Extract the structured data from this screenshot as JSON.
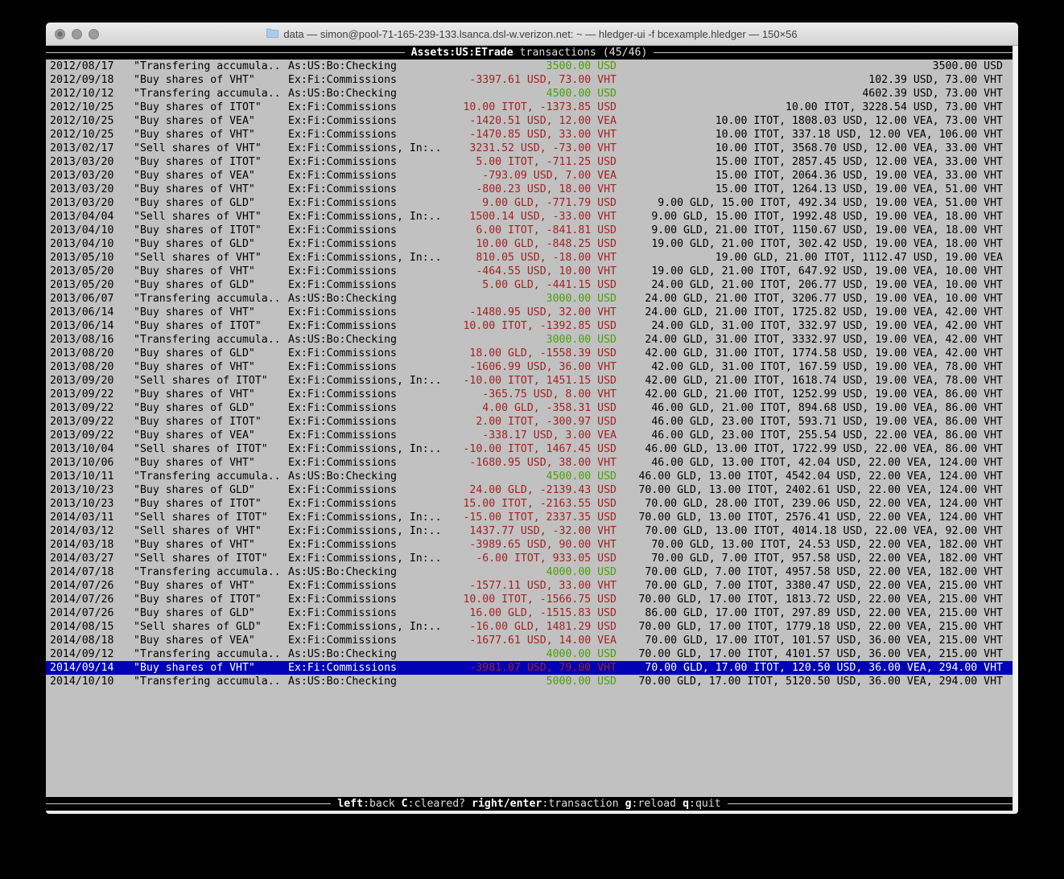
{
  "colors": {
    "terminal_bg": "#c1c1c1",
    "bar_bg": "#000000",
    "selection_bg": "#0000b4",
    "amount_negative": "#a32222",
    "amount_positive": "#4ba006"
  },
  "window": {
    "title": "data — simon@pool-71-165-239-133.lsanca.dsl-w.verizon.net: ~ — hledger-ui -f bcexample.hledger — 150×56"
  },
  "header": {
    "account": "Assets:US:ETrade",
    "rest": " transactions (45/46)"
  },
  "footer": {
    "hints": [
      {
        "key": "left",
        "desc": "back"
      },
      {
        "key": "C",
        "desc": "cleared?"
      },
      {
        "key": "right/enter",
        "desc": "transaction"
      },
      {
        "key": "g",
        "desc": "reload"
      },
      {
        "key": "q",
        "desc": "quit"
      }
    ]
  },
  "register": {
    "selected_index": 44,
    "rows": [
      {
        "date": "2012/08/17",
        "description": "\"Transfering accumula..",
        "account": "As:US:Bo:Checking",
        "amount": "3500.00 USD",
        "amount_sign": "pos",
        "balance": "3500.00 USD"
      },
      {
        "date": "2012/09/18",
        "description": "\"Buy shares of VHT\"",
        "account": "Ex:Fi:Commissions",
        "amount": "-3397.61 USD, 73.00 VHT",
        "amount_sign": "neg",
        "balance": "102.39 USD, 73.00 VHT"
      },
      {
        "date": "2012/10/12",
        "description": "\"Transfering accumula..",
        "account": "As:US:Bo:Checking",
        "amount": "4500.00 USD",
        "amount_sign": "pos",
        "balance": "4602.39 USD, 73.00 VHT"
      },
      {
        "date": "2012/10/25",
        "description": "\"Buy shares of ITOT\"",
        "account": "Ex:Fi:Commissions",
        "amount": "10.00 ITOT, -1373.85 USD",
        "amount_sign": "neg",
        "balance": "10.00 ITOT, 3228.54 USD, 73.00 VHT"
      },
      {
        "date": "2012/10/25",
        "description": "\"Buy shares of VEA\"",
        "account": "Ex:Fi:Commissions",
        "amount": "-1420.51 USD, 12.00 VEA",
        "amount_sign": "neg",
        "balance": "10.00 ITOT, 1808.03 USD, 12.00 VEA, 73.00 VHT"
      },
      {
        "date": "2012/10/25",
        "description": "\"Buy shares of VHT\"",
        "account": "Ex:Fi:Commissions",
        "amount": "-1470.85 USD, 33.00 VHT",
        "amount_sign": "neg",
        "balance": "10.00 ITOT, 337.18 USD, 12.00 VEA, 106.00 VHT"
      },
      {
        "date": "2013/02/17",
        "description": "\"Sell shares of VHT\"",
        "account": "Ex:Fi:Commissions, In:..",
        "amount": "3231.52 USD, -73.00 VHT",
        "amount_sign": "neg",
        "balance": "10.00 ITOT, 3568.70 USD, 12.00 VEA, 33.00 VHT"
      },
      {
        "date": "2013/03/20",
        "description": "\"Buy shares of ITOT\"",
        "account": "Ex:Fi:Commissions",
        "amount": "5.00 ITOT, -711.25 USD",
        "amount_sign": "neg",
        "balance": "15.00 ITOT, 2857.45 USD, 12.00 VEA, 33.00 VHT"
      },
      {
        "date": "2013/03/20",
        "description": "\"Buy shares of VEA\"",
        "account": "Ex:Fi:Commissions",
        "amount": "-793.09 USD, 7.00 VEA",
        "amount_sign": "neg",
        "balance": "15.00 ITOT, 2064.36 USD, 19.00 VEA, 33.00 VHT"
      },
      {
        "date": "2013/03/20",
        "description": "\"Buy shares of VHT\"",
        "account": "Ex:Fi:Commissions",
        "amount": "-800.23 USD, 18.00 VHT",
        "amount_sign": "neg",
        "balance": "15.00 ITOT, 1264.13 USD, 19.00 VEA, 51.00 VHT"
      },
      {
        "date": "2013/03/20",
        "description": "\"Buy shares of GLD\"",
        "account": "Ex:Fi:Commissions",
        "amount": "9.00 GLD, -771.79 USD",
        "amount_sign": "neg",
        "balance": "9.00 GLD, 15.00 ITOT, 492.34 USD, 19.00 VEA, 51.00 VHT"
      },
      {
        "date": "2013/04/04",
        "description": "\"Sell shares of VHT\"",
        "account": "Ex:Fi:Commissions, In:..",
        "amount": "1500.14 USD, -33.00 VHT",
        "amount_sign": "neg",
        "balance": "9.00 GLD, 15.00 ITOT, 1992.48 USD, 19.00 VEA, 18.00 VHT"
      },
      {
        "date": "2013/04/10",
        "description": "\"Buy shares of ITOT\"",
        "account": "Ex:Fi:Commissions",
        "amount": "6.00 ITOT, -841.81 USD",
        "amount_sign": "neg",
        "balance": "9.00 GLD, 21.00 ITOT, 1150.67 USD, 19.00 VEA, 18.00 VHT"
      },
      {
        "date": "2013/04/10",
        "description": "\"Buy shares of GLD\"",
        "account": "Ex:Fi:Commissions",
        "amount": "10.00 GLD, -848.25 USD",
        "amount_sign": "neg",
        "balance": "19.00 GLD, 21.00 ITOT, 302.42 USD, 19.00 VEA, 18.00 VHT"
      },
      {
        "date": "2013/05/10",
        "description": "\"Sell shares of VHT\"",
        "account": "Ex:Fi:Commissions, In:..",
        "amount": "810.05 USD, -18.00 VHT",
        "amount_sign": "neg",
        "balance": "19.00 GLD, 21.00 ITOT, 1112.47 USD, 19.00 VEA"
      },
      {
        "date": "2013/05/20",
        "description": "\"Buy shares of VHT\"",
        "account": "Ex:Fi:Commissions",
        "amount": "-464.55 USD, 10.00 VHT",
        "amount_sign": "neg",
        "balance": "19.00 GLD, 21.00 ITOT, 647.92 USD, 19.00 VEA, 10.00 VHT"
      },
      {
        "date": "2013/05/20",
        "description": "\"Buy shares of GLD\"",
        "account": "Ex:Fi:Commissions",
        "amount": "5.00 GLD, -441.15 USD",
        "amount_sign": "neg",
        "balance": "24.00 GLD, 21.00 ITOT, 206.77 USD, 19.00 VEA, 10.00 VHT"
      },
      {
        "date": "2013/06/07",
        "description": "\"Transfering accumula..",
        "account": "As:US:Bo:Checking",
        "amount": "3000.00 USD",
        "amount_sign": "pos",
        "balance": "24.00 GLD, 21.00 ITOT, 3206.77 USD, 19.00 VEA, 10.00 VHT"
      },
      {
        "date": "2013/06/14",
        "description": "\"Buy shares of VHT\"",
        "account": "Ex:Fi:Commissions",
        "amount": "-1480.95 USD, 32.00 VHT",
        "amount_sign": "neg",
        "balance": "24.00 GLD, 21.00 ITOT, 1725.82 USD, 19.00 VEA, 42.00 VHT"
      },
      {
        "date": "2013/06/14",
        "description": "\"Buy shares of ITOT\"",
        "account": "Ex:Fi:Commissions",
        "amount": "10.00 ITOT, -1392.85 USD",
        "amount_sign": "neg",
        "balance": "24.00 GLD, 31.00 ITOT, 332.97 USD, 19.00 VEA, 42.00 VHT"
      },
      {
        "date": "2013/08/16",
        "description": "\"Transfering accumula..",
        "account": "As:US:Bo:Checking",
        "amount": "3000.00 USD",
        "amount_sign": "pos",
        "balance": "24.00 GLD, 31.00 ITOT, 3332.97 USD, 19.00 VEA, 42.00 VHT"
      },
      {
        "date": "2013/08/20",
        "description": "\"Buy shares of GLD\"",
        "account": "Ex:Fi:Commissions",
        "amount": "18.00 GLD, -1558.39 USD",
        "amount_sign": "neg",
        "balance": "42.00 GLD, 31.00 ITOT, 1774.58 USD, 19.00 VEA, 42.00 VHT"
      },
      {
        "date": "2013/08/20",
        "description": "\"Buy shares of VHT\"",
        "account": "Ex:Fi:Commissions",
        "amount": "-1606.99 USD, 36.00 VHT",
        "amount_sign": "neg",
        "balance": "42.00 GLD, 31.00 ITOT, 167.59 USD, 19.00 VEA, 78.00 VHT"
      },
      {
        "date": "2013/09/20",
        "description": "\"Sell shares of ITOT\"",
        "account": "Ex:Fi:Commissions, In:..",
        "amount": "-10.00 ITOT, 1451.15 USD",
        "amount_sign": "neg",
        "balance": "42.00 GLD, 21.00 ITOT, 1618.74 USD, 19.00 VEA, 78.00 VHT"
      },
      {
        "date": "2013/09/22",
        "description": "\"Buy shares of VHT\"",
        "account": "Ex:Fi:Commissions",
        "amount": "-365.75 USD, 8.00 VHT",
        "amount_sign": "neg",
        "balance": "42.00 GLD, 21.00 ITOT, 1252.99 USD, 19.00 VEA, 86.00 VHT"
      },
      {
        "date": "2013/09/22",
        "description": "\"Buy shares of GLD\"",
        "account": "Ex:Fi:Commissions",
        "amount": "4.00 GLD, -358.31 USD",
        "amount_sign": "neg",
        "balance": "46.00 GLD, 21.00 ITOT, 894.68 USD, 19.00 VEA, 86.00 VHT"
      },
      {
        "date": "2013/09/22",
        "description": "\"Buy shares of ITOT\"",
        "account": "Ex:Fi:Commissions",
        "amount": "2.00 ITOT, -300.97 USD",
        "amount_sign": "neg",
        "balance": "46.00 GLD, 23.00 ITOT, 593.71 USD, 19.00 VEA, 86.00 VHT"
      },
      {
        "date": "2013/09/22",
        "description": "\"Buy shares of VEA\"",
        "account": "Ex:Fi:Commissions",
        "amount": "-338.17 USD, 3.00 VEA",
        "amount_sign": "neg",
        "balance": "46.00 GLD, 23.00 ITOT, 255.54 USD, 22.00 VEA, 86.00 VHT"
      },
      {
        "date": "2013/10/04",
        "description": "\"Sell shares of ITOT\"",
        "account": "Ex:Fi:Commissions, In:..",
        "amount": "-10.00 ITOT, 1467.45 USD",
        "amount_sign": "neg",
        "balance": "46.00 GLD, 13.00 ITOT, 1722.99 USD, 22.00 VEA, 86.00 VHT"
      },
      {
        "date": "2013/10/06",
        "description": "\"Buy shares of VHT\"",
        "account": "Ex:Fi:Commissions",
        "amount": "-1680.95 USD, 38.00 VHT",
        "amount_sign": "neg",
        "balance": "46.00 GLD, 13.00 ITOT, 42.04 USD, 22.00 VEA, 124.00 VHT"
      },
      {
        "date": "2013/10/11",
        "description": "\"Transfering accumula..",
        "account": "As:US:Bo:Checking",
        "amount": "4500.00 USD",
        "amount_sign": "pos",
        "balance": "46.00 GLD, 13.00 ITOT, 4542.04 USD, 22.00 VEA, 124.00 VHT"
      },
      {
        "date": "2013/10/23",
        "description": "\"Buy shares of GLD\"",
        "account": "Ex:Fi:Commissions",
        "amount": "24.00 GLD, -2139.43 USD",
        "amount_sign": "neg",
        "balance": "70.00 GLD, 13.00 ITOT, 2402.61 USD, 22.00 VEA, 124.00 VHT"
      },
      {
        "date": "2013/10/23",
        "description": "\"Buy shares of ITOT\"",
        "account": "Ex:Fi:Commissions",
        "amount": "15.00 ITOT, -2163.55 USD",
        "amount_sign": "neg",
        "balance": "70.00 GLD, 28.00 ITOT, 239.06 USD, 22.00 VEA, 124.00 VHT"
      },
      {
        "date": "2014/03/11",
        "description": "\"Sell shares of ITOT\"",
        "account": "Ex:Fi:Commissions, In:..",
        "amount": "-15.00 ITOT, 2337.35 USD",
        "amount_sign": "neg",
        "balance": "70.00 GLD, 13.00 ITOT, 2576.41 USD, 22.00 VEA, 124.00 VHT"
      },
      {
        "date": "2014/03/12",
        "description": "\"Sell shares of VHT\"",
        "account": "Ex:Fi:Commissions, In:..",
        "amount": "1437.77 USD, -32.00 VHT",
        "amount_sign": "neg",
        "balance": "70.00 GLD, 13.00 ITOT, 4014.18 USD, 22.00 VEA, 92.00 VHT"
      },
      {
        "date": "2014/03/18",
        "description": "\"Buy shares of VHT\"",
        "account": "Ex:Fi:Commissions",
        "amount": "-3989.65 USD, 90.00 VHT",
        "amount_sign": "neg",
        "balance": "70.00 GLD, 13.00 ITOT, 24.53 USD, 22.00 VEA, 182.00 VHT"
      },
      {
        "date": "2014/03/27",
        "description": "\"Sell shares of ITOT\"",
        "account": "Ex:Fi:Commissions, In:..",
        "amount": "-6.00 ITOT, 933.05 USD",
        "amount_sign": "neg",
        "balance": "70.00 GLD, 7.00 ITOT, 957.58 USD, 22.00 VEA, 182.00 VHT"
      },
      {
        "date": "2014/07/18",
        "description": "\"Transfering accumula..",
        "account": "As:US:Bo:Checking",
        "amount": "4000.00 USD",
        "amount_sign": "pos",
        "balance": "70.00 GLD, 7.00 ITOT, 4957.58 USD, 22.00 VEA, 182.00 VHT"
      },
      {
        "date": "2014/07/26",
        "description": "\"Buy shares of VHT\"",
        "account": "Ex:Fi:Commissions",
        "amount": "-1577.11 USD, 33.00 VHT",
        "amount_sign": "neg",
        "balance": "70.00 GLD, 7.00 ITOT, 3380.47 USD, 22.00 VEA, 215.00 VHT"
      },
      {
        "date": "2014/07/26",
        "description": "\"Buy shares of ITOT\"",
        "account": "Ex:Fi:Commissions",
        "amount": "10.00 ITOT, -1566.75 USD",
        "amount_sign": "neg",
        "balance": "70.00 GLD, 17.00 ITOT, 1813.72 USD, 22.00 VEA, 215.00 VHT"
      },
      {
        "date": "2014/07/26",
        "description": "\"Buy shares of GLD\"",
        "account": "Ex:Fi:Commissions",
        "amount": "16.00 GLD, -1515.83 USD",
        "amount_sign": "neg",
        "balance": "86.00 GLD, 17.00 ITOT, 297.89 USD, 22.00 VEA, 215.00 VHT"
      },
      {
        "date": "2014/08/15",
        "description": "\"Sell shares of GLD\"",
        "account": "Ex:Fi:Commissions, In:..",
        "amount": "-16.00 GLD, 1481.29 USD",
        "amount_sign": "neg",
        "balance": "70.00 GLD, 17.00 ITOT, 1779.18 USD, 22.00 VEA, 215.00 VHT"
      },
      {
        "date": "2014/08/18",
        "description": "\"Buy shares of VEA\"",
        "account": "Ex:Fi:Commissions",
        "amount": "-1677.61 USD, 14.00 VEA",
        "amount_sign": "neg",
        "balance": "70.00 GLD, 17.00 ITOT, 101.57 USD, 36.00 VEA, 215.00 VHT"
      },
      {
        "date": "2014/09/12",
        "description": "\"Transfering accumula..",
        "account": "As:US:Bo:Checking",
        "amount": "4000.00 USD",
        "amount_sign": "pos",
        "balance": "70.00 GLD, 17.00 ITOT, 4101.57 USD, 36.00 VEA, 215.00 VHT"
      },
      {
        "date": "2014/09/14",
        "description": "\"Buy shares of VHT\"",
        "account": "Ex:Fi:Commissions",
        "amount": "-3981.07 USD, 79.00 VHT",
        "amount_sign": "neg",
        "balance": "70.00 GLD, 17.00 ITOT, 120.50 USD, 36.00 VEA, 294.00 VHT"
      },
      {
        "date": "2014/10/10",
        "description": "\"Transfering accumula..",
        "account": "As:US:Bo:Checking",
        "amount": "5000.00 USD",
        "amount_sign": "pos",
        "balance": "70.00 GLD, 17.00 ITOT, 5120.50 USD, 36.00 VEA, 294.00 VHT"
      }
    ]
  }
}
